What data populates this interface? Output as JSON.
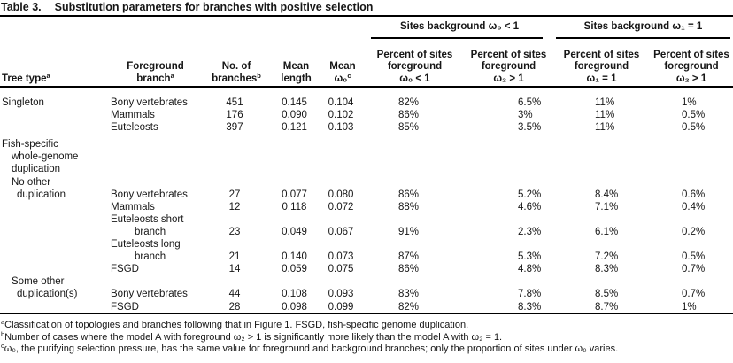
{
  "title": {
    "label": "Table 3.",
    "text": "Substitution parameters for branches with positive selection"
  },
  "table": {
    "spanners": [
      {
        "label": "Sites background ω₀ < 1"
      },
      {
        "label": "Sites background ω₁ = 1"
      }
    ],
    "columns": [
      {
        "lines": [
          {
            "text": "Tree type",
            "sup": "a"
          }
        ]
      },
      {
        "lines": [
          {
            "text": "Foreground"
          },
          {
            "text": "branch",
            "sup": "a"
          }
        ]
      },
      {
        "lines": [
          {
            "text": "No. of"
          },
          {
            "text": "branches",
            "sup": "b"
          }
        ]
      },
      {
        "lines": [
          {
            "text": "Mean"
          },
          {
            "text": "length"
          }
        ]
      },
      {
        "lines": [
          {
            "text": "Mean"
          },
          {
            "text": "ω₀",
            "sup": "c"
          }
        ]
      },
      {
        "lines": [
          {
            "text": "Percent of sites"
          },
          {
            "text": "foreground"
          },
          {
            "text": "ω₀ < 1"
          }
        ]
      },
      {
        "lines": [
          {
            "text": "Percent of sites"
          },
          {
            "text": "foreground"
          },
          {
            "text": "ω₂ > 1"
          }
        ]
      },
      {
        "lines": [
          {
            "text": "Percent of sites"
          },
          {
            "text": "foreground"
          },
          {
            "text": "ω₁ = 1"
          }
        ]
      },
      {
        "lines": [
          {
            "text": "Percent of sites"
          },
          {
            "text": "foreground"
          },
          {
            "text": "ω₂ > 1"
          }
        ]
      }
    ],
    "rows": [
      {
        "cells": [
          "Singleton",
          "Bony vertebrates",
          "451",
          "0.145",
          "0.104",
          "82%",
          "6.5%",
          "11%",
          "1%"
        ]
      },
      {
        "cells": [
          "",
          "Mammals",
          "176",
          "0.090",
          "0.102",
          "86%",
          "3%",
          "11%",
          "0.5%"
        ]
      },
      {
        "cells": [
          "",
          "Euteleosts",
          "397",
          "0.121",
          "0.103",
          "85%",
          "3.5%",
          "11%",
          "0.5%"
        ]
      },
      {
        "cells": [
          "Fish-specific",
          "",
          "",
          "",
          "",
          "",
          "",
          "",
          ""
        ],
        "gap_before": true
      },
      {
        "cells": [
          "whole-genome",
          "",
          "",
          "",
          "",
          "",
          "",
          "",
          ""
        ],
        "indents": {
          "0": 1
        }
      },
      {
        "cells": [
          "duplication",
          "",
          "",
          "",
          "",
          "",
          "",
          "",
          ""
        ],
        "indents": {
          "0": 1
        }
      },
      {
        "cells": [
          "No other",
          "",
          "",
          "",
          "",
          "",
          "",
          "",
          ""
        ],
        "indents": {
          "0": 1
        }
      },
      {
        "cells": [
          "duplication",
          "Bony vertebrates",
          "27",
          "0.077",
          "0.080",
          "86%",
          "5.2%",
          "8.4%",
          "0.6%"
        ],
        "indents": {
          "0": 2
        }
      },
      {
        "cells": [
          "",
          "Mammals",
          "12",
          "0.118",
          "0.072",
          "88%",
          "4.6%",
          "7.1%",
          "0.4%"
        ]
      },
      {
        "cells": [
          "",
          "Euteleosts short",
          "",
          "",
          "",
          "",
          "",
          "",
          ""
        ]
      },
      {
        "cells": [
          "",
          "branch",
          "23",
          "0.049",
          "0.067",
          "91%",
          "2.3%",
          "6.1%",
          "0.2%"
        ],
        "indents": {
          "1": 1
        }
      },
      {
        "cells": [
          "",
          "Euteleosts long",
          "",
          "",
          "",
          "",
          "",
          "",
          ""
        ]
      },
      {
        "cells": [
          "",
          "branch",
          "21",
          "0.140",
          "0.073",
          "87%",
          "5.3%",
          "7.2%",
          "0.5%"
        ],
        "indents": {
          "1": 1
        }
      },
      {
        "cells": [
          "",
          "FSGD",
          "14",
          "0.059",
          "0.075",
          "86%",
          "4.8%",
          "8.3%",
          "0.7%"
        ]
      },
      {
        "cells": [
          "Some other",
          "",
          "",
          "",
          "",
          "",
          "",
          "",
          ""
        ],
        "indents": {
          "0": 1
        }
      },
      {
        "cells": [
          "duplication(s)",
          "Bony vertebrates",
          "44",
          "0.108",
          "0.093",
          "83%",
          "7.8%",
          "8.5%",
          "0.7%"
        ],
        "indents": {
          "0": 2
        }
      },
      {
        "cells": [
          "",
          "FSGD",
          "28",
          "0.098",
          "0.099",
          "82%",
          "8.3%",
          "8.7%",
          "1%"
        ]
      }
    ]
  },
  "footnotes": [
    {
      "marker": "a",
      "text": "Classification of topologies and branches following that in Figure 1. FSGD, fish-specific genome duplication."
    },
    {
      "marker": "b",
      "text": "Number of cases where the model A with foreground ω₂ > 1 is significantly more likely than the model A with ω₂ = 1."
    },
    {
      "marker": "c",
      "text": "ω₀, the purifying selection pressure, has the same value for foreground and background branches; only the proportion of sites under ω₀ varies."
    }
  ]
}
